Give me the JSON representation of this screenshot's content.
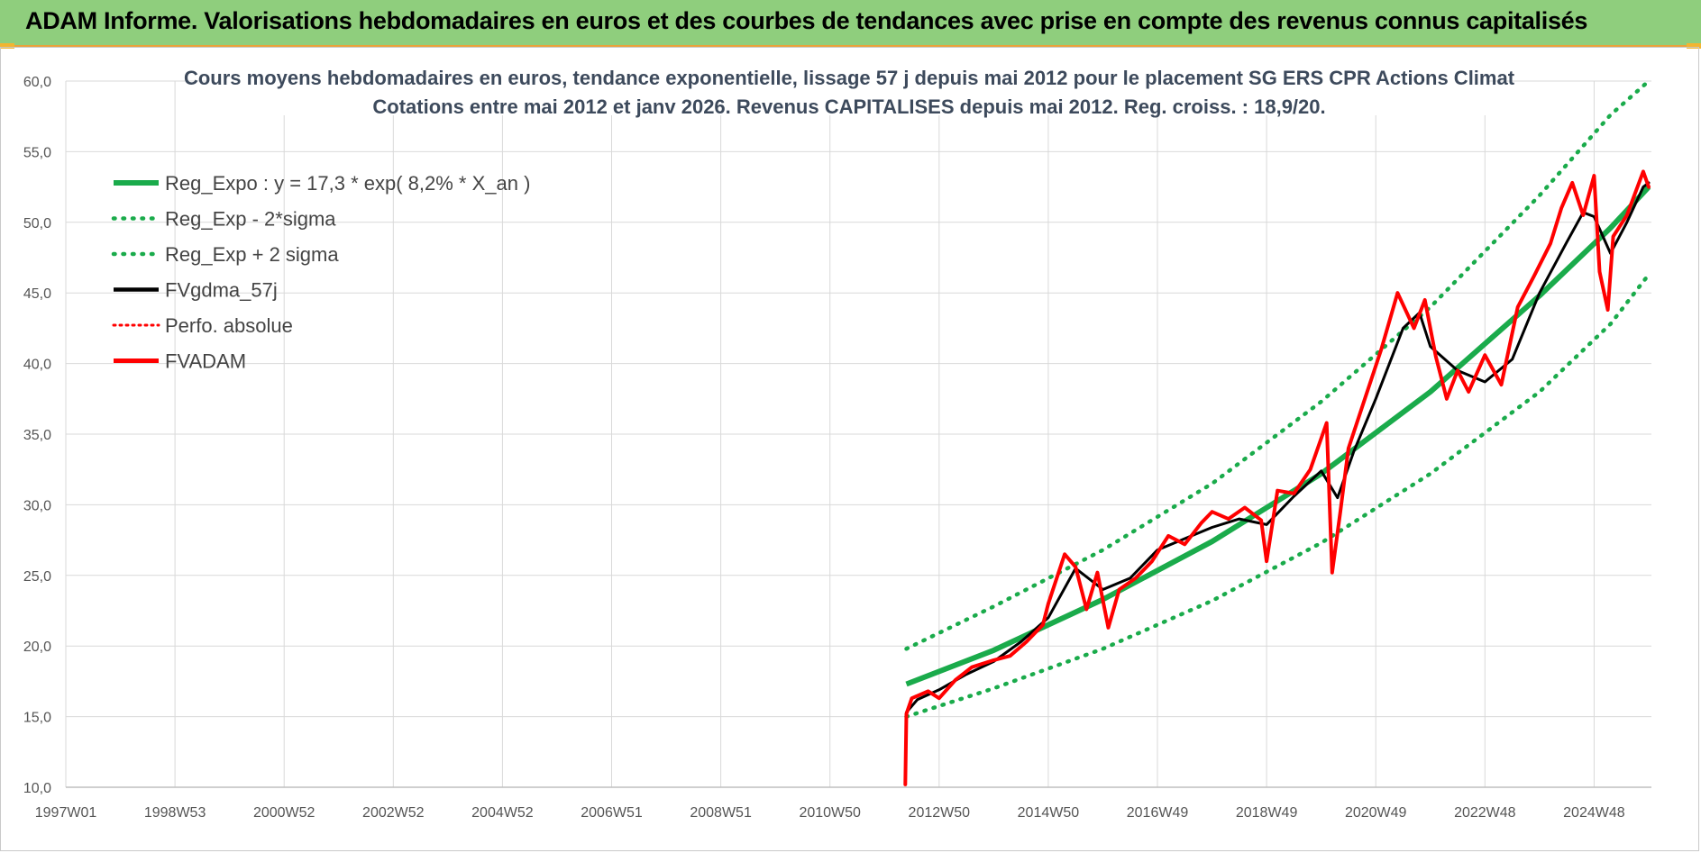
{
  "banner": {
    "title": "ADAM Informe. Valorisations hebdomadaires en euros et des courbes de tendances avec prise en compte des revenus connus capitalisés"
  },
  "colors": {
    "banner_bg": "#8fce7d",
    "reg_green": "#1aab4b",
    "fvgdma_black": "#000000",
    "fvadam_red": "#ff0000",
    "grid": "#d9d9d9"
  },
  "chart_data": {
    "type": "line",
    "title": [
      "Cours moyens hebdomadaires en euros, tendance exponentielle, lissage 57 j depuis mai 2012 pour le placement SG ERS CPR Actions Climat",
      "Cotations entre mai 2012 et janv 2026. Revenus CAPITALISES depuis mai 2012. Reg. croiss. : 18,9/20."
    ],
    "x_tick_labels": [
      "1997W01",
      "1998W53",
      "2000W52",
      "2002W52",
      "2004W52",
      "2006W51",
      "2008W51",
      "2010W50",
      "2012W50",
      "2014W50",
      "2016W49",
      "2018W49",
      "2020W49",
      "2022W48",
      "2024W48"
    ],
    "x_range": [
      "1997W01",
      "2026W02"
    ],
    "ylim": [
      10,
      60
    ],
    "y_tick_labels": [
      "10,0",
      "15,0",
      "20,0",
      "25,0",
      "30,0",
      "35,0",
      "40,0",
      "45,0",
      "50,0",
      "55,0",
      "60,0"
    ],
    "grid": true,
    "legend_position": "top-left",
    "legend": [
      "Reg_Expo : y = 17,3 * exp( 8,2% *  X_an )",
      "Reg_Exp - 2*sigma",
      "Reg_Exp + 2 sigma",
      "FVgdma_57j",
      "Perfo. absolue",
      "FVADAM"
    ],
    "x_unit": "year",
    "series": [
      {
        "name": "Reg_Expo : y = 17,3 * exp( 8,2% *  X_an )",
        "style": "solid",
        "color": "#1aab4b",
        "x": [
          2012.4,
          2014,
          2016,
          2018,
          2020,
          2022,
          2024,
          2025.3,
          2026.0
        ],
        "y": [
          17.3,
          19.7,
          23.3,
          27.4,
          32.2,
          38.0,
          44.8,
          49.6,
          52.5
        ]
      },
      {
        "name": "Reg_Exp - 2*sigma",
        "style": "dotted",
        "color": "#1aab4b",
        "x": [
          2012.4,
          2014,
          2016,
          2018,
          2020,
          2022,
          2024,
          2025.3,
          2026.0
        ],
        "y": [
          15.0,
          17.0,
          19.8,
          23.2,
          27.3,
          32.2,
          38.0,
          42.8,
          46.3
        ]
      },
      {
        "name": "Reg_Exp + 2 sigma",
        "style": "dotted",
        "color": "#1aab4b",
        "x": [
          2012.4,
          2014,
          2016,
          2018,
          2020,
          2022,
          2024,
          2025.3,
          2026.0
        ],
        "y": [
          19.8,
          22.8,
          26.8,
          31.5,
          37.3,
          44.0,
          51.9,
          57.6,
          60.0
        ]
      },
      {
        "name": "FVgdma_57j",
        "style": "solid",
        "color": "#000000",
        "x": [
          2012.4,
          2012.6,
          2013.0,
          2013.5,
          2014.0,
          2014.5,
          2015.0,
          2015.5,
          2016.0,
          2016.5,
          2017.0,
          2017.5,
          2018.0,
          2018.5,
          2019.0,
          2019.5,
          2020.0,
          2020.3,
          2020.6,
          2021.0,
          2021.5,
          2021.8,
          2022.0,
          2022.5,
          2023.0,
          2023.5,
          2024.0,
          2024.5,
          2024.8,
          2025.0,
          2025.3,
          2025.6,
          2025.9,
          2026.0
        ],
        "y": [
          15.3,
          16.2,
          16.9,
          18.0,
          18.9,
          20.3,
          22.0,
          25.5,
          24.0,
          24.8,
          26.8,
          27.6,
          28.4,
          29.0,
          28.6,
          30.6,
          32.4,
          30.5,
          33.8,
          37.5,
          42.5,
          43.6,
          41.2,
          39.5,
          38.7,
          40.3,
          45.0,
          48.6,
          50.7,
          50.4,
          47.8,
          50.0,
          52.5,
          52.8
        ]
      },
      {
        "name": "FVADAM",
        "style": "solid",
        "color": "#ff0000",
        "x": [
          2012.38,
          2012.4,
          2012.5,
          2012.8,
          2013.0,
          2013.3,
          2013.6,
          2014.0,
          2014.3,
          2014.6,
          2014.9,
          2015.0,
          2015.3,
          2015.5,
          2015.7,
          2015.9,
          2016.1,
          2016.3,
          2016.6,
          2016.9,
          2017.2,
          2017.5,
          2017.8,
          2018.0,
          2018.3,
          2018.6,
          2018.9,
          2019.0,
          2019.2,
          2019.5,
          2019.8,
          2020.1,
          2020.2,
          2020.35,
          2020.5,
          2020.8,
          2021.1,
          2021.4,
          2021.7,
          2021.9,
          2022.1,
          2022.3,
          2022.5,
          2022.7,
          2023.0,
          2023.3,
          2023.6,
          2023.9,
          2024.2,
          2024.4,
          2024.6,
          2024.8,
          2025.0,
          2025.1,
          2025.25,
          2025.35,
          2025.6,
          2025.9,
          2026.0
        ],
        "y": [
          10.2,
          15.2,
          16.3,
          16.8,
          16.3,
          17.6,
          18.5,
          19.0,
          19.3,
          20.3,
          21.5,
          23.0,
          26.5,
          25.6,
          22.6,
          25.2,
          21.3,
          24.0,
          24.8,
          26.0,
          27.8,
          27.2,
          28.7,
          29.5,
          29.0,
          29.8,
          28.9,
          26.0,
          31.0,
          30.8,
          32.5,
          35.8,
          25.2,
          29.5,
          34.0,
          37.5,
          41.0,
          45.0,
          42.5,
          44.5,
          40.5,
          37.5,
          39.5,
          38.0,
          40.6,
          38.5,
          44.0,
          46.2,
          48.5,
          51.0,
          52.8,
          50.5,
          53.3,
          46.5,
          43.8,
          49.0,
          50.5,
          53.6,
          52.5
        ]
      }
    ]
  }
}
